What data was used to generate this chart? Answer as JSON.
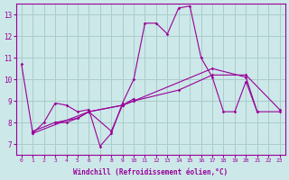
{
  "background_color": "#cce8e8",
  "grid_color": "#aacccc",
  "line_color": "#990099",
  "xlim": [
    -0.5,
    23.5
  ],
  "ylim": [
    6.5,
    13.5
  ],
  "xlabel": "Windchill (Refroidissement éolien,°C)",
  "yticks": [
    7,
    8,
    9,
    10,
    11,
    12,
    13
  ],
  "xticks": [
    0,
    1,
    2,
    3,
    4,
    5,
    6,
    7,
    8,
    9,
    10,
    11,
    12,
    13,
    14,
    15,
    16,
    17,
    18,
    19,
    20,
    21,
    22,
    23
  ],
  "s1_x": [
    0,
    1,
    2,
    3,
    4,
    5,
    6,
    7,
    8,
    9,
    10,
    11,
    12,
    13,
    14,
    15,
    16,
    17,
    18,
    19,
    20,
    21
  ],
  "s1_y": [
    10.7,
    7.5,
    8.0,
    8.9,
    8.8,
    8.5,
    8.6,
    6.9,
    7.5,
    8.9,
    10.0,
    12.6,
    12.6,
    12.1,
    13.3,
    13.4,
    11.0,
    10.1,
    8.5,
    8.5,
    9.9,
    8.5
  ],
  "s2_x": [
    1,
    6,
    9,
    10,
    17,
    20,
    21,
    23
  ],
  "s2_y": [
    7.5,
    8.5,
    8.8,
    9.0,
    10.5,
    10.1,
    8.5,
    8.5
  ],
  "s3_x": [
    1,
    3,
    5,
    6,
    9,
    10,
    14,
    17,
    20,
    23
  ],
  "s3_y": [
    7.6,
    8.0,
    8.2,
    8.5,
    8.8,
    9.0,
    9.5,
    10.2,
    10.2,
    8.6
  ],
  "s4_x": [
    3,
    4,
    5,
    6,
    8,
    9,
    10
  ],
  "s4_y": [
    8.0,
    8.0,
    8.2,
    8.5,
    7.6,
    8.8,
    9.1
  ]
}
